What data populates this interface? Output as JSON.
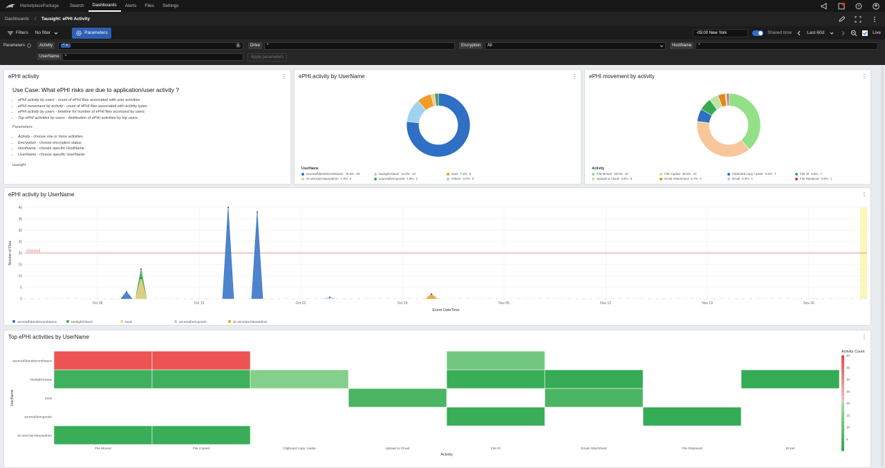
{
  "topnav": {
    "app_name": "MarketplacePackage",
    "items": [
      "Search",
      "Dashboards",
      "Alerts",
      "Files",
      "Settings"
    ],
    "active": "Dashboards"
  },
  "breadcrumb": {
    "root": "Dashboards",
    "separator": "/",
    "current": "Tausight: ePHI Activity"
  },
  "toolbar": {
    "filters_label": "Filters",
    "filter_value": "No filter",
    "parameters_label": "Parameters",
    "timezone": "-05:00 New York",
    "shared_time_label": "Shared time",
    "range": "Last 60d",
    "live_label": "Live"
  },
  "params": {
    "label": "Parameters",
    "activity_label": "Activity",
    "activity_chip": "* ×",
    "activity_count": "1",
    "drive_label": "Drive",
    "drive_value": "*",
    "encryption_label": "Encryption",
    "encryption_value": "All",
    "hostname_label": "HostName",
    "hostname_value": "*",
    "username_label": "UserName",
    "username_value": "*",
    "apply_label": "Apply parameters"
  },
  "text_panel": {
    "title": "ePHI activity",
    "heading": "Use Case: What ePHI risks are due to application/user activity ?",
    "bullets": [
      {
        "em": "ePHI activity by users",
        "rest": " - count of ePHI files associated with user activities"
      },
      {
        "em": "ePHI movement by activity",
        "rest": " - count of ePHI files associated with activity types"
      },
      {
        "em": "ePHI activity by users",
        "rest": " - timeline for number of ePHI files accessed by users"
      },
      {
        "em": "Top ePHI activities by users",
        "rest": " - distribution of ePHI activities by top users"
      }
    ],
    "params_heading": "Parameters:",
    "param_bullets": [
      {
        "em": "Activity",
        "rest": " - choose one or more activities"
      },
      {
        "em": "Encryption",
        "rest": " - choose encryption status"
      },
      {
        "em": "HostName",
        "rest": " - choose specific HostName"
      },
      {
        "em": "UserName",
        "rest": " - choose specific UserName"
      }
    ],
    "footer": "tausight"
  },
  "colors": {
    "blue": "#2f6fc4",
    "lightblue": "#9fd3ef",
    "orange": "#f09a2a",
    "green": "#3aa84f",
    "lightgreen": "#93e089",
    "peach": "#f7c79b",
    "darkorange": "#e8861a",
    "red": "#d93b3b"
  },
  "chart_data": [
    {
      "type": "pie",
      "title": "ePHI activity by UserName",
      "legend_title": "UserName",
      "slices": [
        {
          "label": "azuread\\danielezumbiasov",
          "pct_text": "76.9%",
          "count": "83",
          "value": 83,
          "color": "#2f6fc4"
        },
        {
          "label": "tausight1\\tausi",
          "pct_text": "12.0%",
          "count": "13",
          "value": 13,
          "color": "#9fd3ef"
        },
        {
          "label": "tausi",
          "pct_text": "7.4%",
          "count": "8",
          "value": 8,
          "color": "#f09a2a"
        },
        {
          "label": "dc-win10pro\\tausadmin",
          "pct_text": "1.9%",
          "count": "2",
          "value": 2,
          "color": "#f7c79b"
        },
        {
          "label": "azuread\\ericgoode",
          "pct_text": "1.9%",
          "count": "2",
          "value": 2,
          "color": "#3aa84f"
        },
        {
          "label": "Others",
          "pct_text": "0.0%",
          "count": "0",
          "value": 0,
          "color": "#93e089"
        }
      ]
    },
    {
      "type": "pie",
      "title": "ePHI movement by activity",
      "legend_title": "Activity",
      "slices": [
        {
          "label": "File Moved",
          "pct_text": "38.9%",
          "count": "42",
          "value": 42,
          "color": "#93e089"
        },
        {
          "label": "File Copied",
          "pct_text": "38.0%",
          "count": "41",
          "value": 41,
          "color": "#f7c79b"
        },
        {
          "label": "Clipboard copy / paste",
          "pct_text": "6.5%",
          "count": "7",
          "value": 7,
          "color": "#2f6fc4"
        },
        {
          "label": "File IO",
          "pct_text": "6.5%",
          "count": "7",
          "value": 7,
          "color": "#3aa84f"
        },
        {
          "label": "Upload to Cloud",
          "pct_text": "4.6%",
          "count": "5",
          "value": 5,
          "color": "#b9e6a6"
        },
        {
          "label": "Email Attachment",
          "pct_text": "3.7%",
          "count": "4",
          "value": 4,
          "color": "#e8861a"
        },
        {
          "label": "Email",
          "pct_text": "0.9%",
          "count": "1",
          "value": 1,
          "color": "#9fd3ef"
        },
        {
          "label": "File Replaced",
          "pct_text": "0.9%",
          "count": "1",
          "value": 1,
          "color": "#d93b3b"
        }
      ]
    },
    {
      "type": "area",
      "title": "ePHI activity by UserName",
      "xlabel": "Event DateTime",
      "ylabel": "Number of Files",
      "ylim": [
        0,
        40
      ],
      "yticks": [
        0,
        5,
        10,
        15,
        20,
        25,
        30,
        35,
        40
      ],
      "xlim": [
        "2023-10-03",
        "2023-11-30"
      ],
      "xticks": [
        {
          "date": "2023-10-08",
          "label": "Oct 08"
        },
        {
          "date": "2023-10-15",
          "label": "Oct 15"
        },
        {
          "date": "2023-10-22",
          "label": "Oct 22"
        },
        {
          "date": "2023-10-29",
          "label": "Oct 29"
        },
        {
          "date": "2023-11-05",
          "label": "Nov 05"
        },
        {
          "date": "2023-11-12",
          "label": "Nov 12"
        },
        {
          "date": "2023-11-19",
          "label": "Nov 19"
        },
        {
          "date": "2023-11-26",
          "label": "Nov 26"
        }
      ],
      "threshold": {
        "value": 20,
        "label": "Standard",
        "color": "#e07070"
      },
      "series": [
        {
          "name": "azuread\\danielezumbiasov",
          "color": "#2f6fc4",
          "points": [
            [
              "2023-10-10",
              3
            ],
            [
              "2023-10-17",
              40
            ],
            [
              "2023-10-19",
              38
            ]
          ]
        },
        {
          "name": "tausight1\\tausi",
          "color": "#3aa84f",
          "points": [
            [
              "2023-10-11",
              13
            ]
          ]
        },
        {
          "name": "tausi",
          "color": "#f0d58a",
          "points": [
            [
              "2023-10-11",
              9
            ]
          ]
        },
        {
          "name": "azuread\\ericgoode",
          "color": "#9fd3ef",
          "points": [
            [
              "2023-10-24",
              0.6
            ]
          ]
        },
        {
          "name": "dc-win10pro\\tausadmin",
          "color": "#f09a2a",
          "points": [
            [
              "2023-10-31",
              2
            ]
          ]
        }
      ]
    },
    {
      "type": "heatmap",
      "title": "Top ePHI activities by UserName",
      "xlabel": "Activity",
      "ylabel": "UserName",
      "legend_title": "Activity Count",
      "scale": {
        "min": 0,
        "max": 40,
        "ticks": [
          5,
          10,
          15,
          20,
          25,
          30,
          35,
          40
        ]
      },
      "x": [
        "File Moved",
        "File Copied",
        "Clipboard copy / paste",
        "Upload to Cloud",
        "File IO",
        "Email Attachment",
        "File Replaced",
        "Email"
      ],
      "y": [
        "azuread\\danielezumbiasov",
        "tausight1\\tausi",
        "tausi",
        "azuread\\ericgoode",
        "dc-win10pro\\tausadmin"
      ],
      "values": [
        [
          38,
          38,
          null,
          null,
          12,
          null,
          null,
          null
        ],
        [
          3,
          3,
          15,
          null,
          2,
          1,
          null,
          1
        ],
        [
          null,
          null,
          null,
          5,
          null,
          5,
          null,
          null
        ],
        [
          null,
          null,
          null,
          null,
          2,
          null,
          1,
          null
        ],
        [
          2,
          2,
          null,
          null,
          null,
          null,
          null,
          null
        ]
      ]
    }
  ]
}
